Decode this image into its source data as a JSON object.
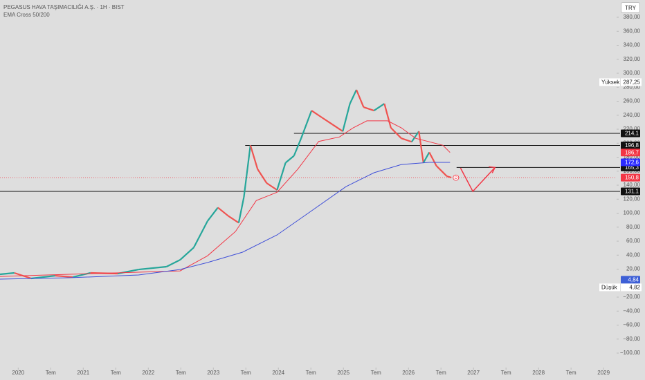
{
  "chart_data": {
    "type": "line",
    "title": "PEGASUS HAVA TAŞIMACILIĞI A.Ş. · 1H · BIST",
    "subtitle": "EMA Cross 50/200",
    "currency": "TRY",
    "xlim": [
      2019.72,
      2029.19
    ],
    "xticks": [
      2020,
      {
        "value": 2020.5,
        "label": "Tem"
      },
      2021,
      {
        "value": 2021.5,
        "label": "Tem"
      },
      2022,
      {
        "value": 2022.5,
        "label": "Tem"
      },
      2023,
      {
        "value": 2023.5,
        "label": "Tem"
      },
      2024,
      {
        "value": 2024.5,
        "label": "Tem"
      },
      2025,
      {
        "value": 2025.5,
        "label": "Tem"
      },
      2026,
      {
        "value": 2026.5,
        "label": "Tem"
      },
      2027,
      {
        "value": 2027.5,
        "label": "Tem"
      },
      2028,
      {
        "value": 2028.5,
        "label": "Tem"
      },
      2029
    ],
    "ylim": [
      -120.7,
      404.7
    ],
    "yticks": [
      {
        "value": 380,
        "label": "380,00"
      },
      {
        "value": 360,
        "label": "360,00"
      },
      {
        "value": 340,
        "label": "340,00"
      },
      {
        "value": 320,
        "label": "320,00"
      },
      {
        "value": 300,
        "label": "300,00"
      },
      {
        "value": 280,
        "label": "280,00"
      },
      {
        "value": 260,
        "label": "260,00"
      },
      {
        "value": 240,
        "label": "240,00"
      },
      {
        "value": 220,
        "label": "220,00"
      },
      {
        "value": 200,
        "label": "200,00"
      },
      {
        "value": 180,
        "label": "180,00"
      },
      {
        "value": 160,
        "label": "160,00"
      },
      {
        "value": 140,
        "label": "140,00"
      },
      {
        "value": 120,
        "label": "120,00"
      },
      {
        "value": 100,
        "label": "100,00"
      },
      {
        "value": 80,
        "label": "80,00"
      },
      {
        "value": 60,
        "label": "60,00"
      },
      {
        "value": 40,
        "label": "40,00"
      },
      {
        "value": 20,
        "label": "20,00"
      },
      {
        "value": -20,
        "label": "−20,00"
      },
      {
        "value": -40,
        "label": "−40,00"
      },
      {
        "value": -60,
        "label": "−60,00"
      },
      {
        "value": -80,
        "label": "−80,00"
      },
      {
        "value": -100,
        "label": "−100,00"
      }
    ],
    "grid": false,
    "series": [
      {
        "style": "price",
        "up_color": "#26a69a",
        "down_color": "#ef5350",
        "x": [
          2019.72,
          2019.94,
          2020.2,
          2020.57,
          2020.84,
          2021.11,
          2021.53,
          2021.85,
          2022.28,
          2022.49,
          2022.7,
          2022.91,
          2023.07,
          2023.23,
          2023.39,
          2023.47,
          2023.57,
          2023.68,
          2023.82,
          2023.98,
          2024.11,
          2024.24,
          2024.35,
          2024.51,
          2024.67,
          2024.83,
          2024.99,
          2025.1,
          2025.2,
          2025.31,
          2025.47,
          2025.63,
          2025.73,
          2025.89,
          2026.05,
          2026.16,
          2026.23,
          2026.32,
          2026.43,
          2026.59,
          2026.66
        ],
        "values": [
          12.6,
          14.6,
          6.7,
          10.6,
          8.6,
          14.6,
          13.6,
          19.5,
          23.5,
          33.3,
          51,
          88.6,
          108,
          96,
          86.2,
          123,
          197,
          163,
          143,
          133.1,
          172,
          182,
          207,
          246.6,
          236.7,
          226.9,
          217,
          256.5,
          276.3,
          251.6,
          246.6,
          256.5,
          222,
          207,
          202,
          217,
          172,
          187,
          167.6,
          152.8,
          150.8
        ]
      },
      {
        "style": "line",
        "color": "#f23645",
        "x": [
          2019.72,
          2022.49,
          2022.91,
          2023.34,
          2023.66,
          2023.98,
          2024.3,
          2024.62,
          2024.94,
          2025.15,
          2025.36,
          2025.68,
          2025.89,
          2026.11,
          2026.32,
          2026.53,
          2026.64
        ],
        "values": [
          9.6,
          17.5,
          39,
          73.8,
          118,
          130,
          163,
          202.5,
          209,
          222,
          232,
          232,
          222,
          207,
          202,
          197,
          186.7
        ]
      },
      {
        "style": "line",
        "color": "#3f4fd8",
        "x": [
          2019.72,
          2020.79,
          2021.85,
          2022.49,
          2022.91,
          2023.45,
          2023.98,
          2024.51,
          2025.04,
          2025.47,
          2025.89,
          2026.32,
          2026.64
        ],
        "values": [
          5.7,
          7.7,
          11.6,
          19.5,
          29.4,
          44.2,
          68.9,
          103.4,
          138,
          157.8,
          169.6,
          172.6,
          172.6
        ]
      },
      {
        "style": "arrow",
        "color": "#f23645",
        "x": [
          2026.8,
          2026.99,
          2027.33
        ],
        "values": [
          164.6,
          131.1,
          165.3
        ]
      }
    ],
    "levels": [
      {
        "value": 214.1,
        "label": "214,1",
        "from": 2024.24
      },
      {
        "value": 196.8,
        "label": "196,8",
        "from": 2023.49
      },
      {
        "value": 165.3,
        "label": "165,3",
        "from": 2026.74
      },
      {
        "value": 131.1,
        "label": "131,1",
        "from": 2019.72
      }
    ],
    "price_line": {
      "value": 150.8,
      "color": "#f23645"
    },
    "badges": [
      {
        "value": 186.7,
        "label": "186,7",
        "color": "#f23645"
      },
      {
        "value": 172.6,
        "label": "172,6",
        "color": "#2b2bff"
      },
      {
        "value": 150.8,
        "label": "150,8",
        "color": "#f23645"
      },
      {
        "value": 4.84,
        "label": "4,84",
        "color": "#3d5fd6"
      }
    ],
    "high": {
      "name": "Yüksek",
      "value": 287.25,
      "label": "287,25"
    },
    "low": {
      "name": "Düşük",
      "value": 4.82,
      "label": "4,82"
    },
    "dividend_marker": {
      "x": 2026.73,
      "value": 150.8,
      "label": "D"
    }
  }
}
